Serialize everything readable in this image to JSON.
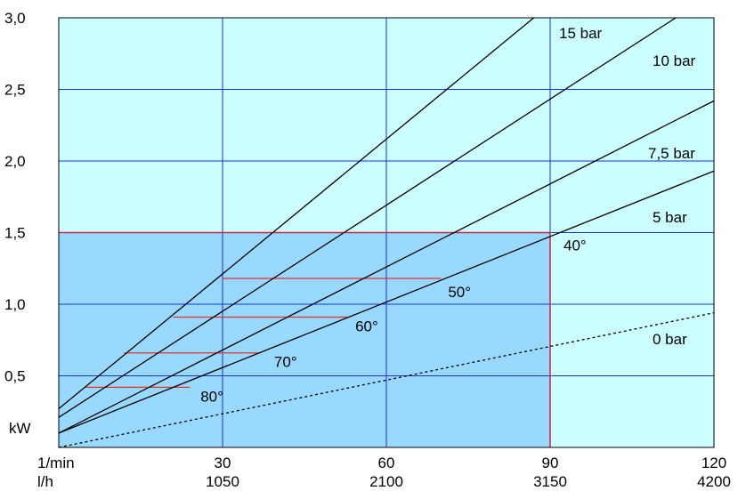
{
  "chart_data": {
    "type": "line",
    "title": "",
    "y_unit_label": "kW",
    "x_unit_labels": [
      "1/min",
      "l/h"
    ],
    "xlim": [
      0,
      120
    ],
    "ylim": [
      0,
      3.0
    ],
    "x_ticks": [
      {
        "rpm": 30,
        "rpm_label": "30",
        "flow_label": "1050"
      },
      {
        "rpm": 60,
        "rpm_label": "60",
        "flow_label": "2100"
      },
      {
        "rpm": 90,
        "rpm_label": "90",
        "flow_label": "3150"
      },
      {
        "rpm": 120,
        "rpm_label": "120",
        "flow_label": "4200"
      }
    ],
    "y_ticks": [
      {
        "value": 0.5,
        "label": "0,5"
      },
      {
        "value": 1.0,
        "label": "1,0"
      },
      {
        "value": 1.5,
        "label": "1,5"
      },
      {
        "value": 2.0,
        "label": "2,0"
      },
      {
        "value": 2.5,
        "label": "2,5"
      },
      {
        "value": 3.0,
        "label": "3,0"
      }
    ],
    "grid": true,
    "colors": {
      "background": "#ccffff",
      "operating_area": "#99d9ff",
      "grid": "#1a33cc",
      "area_border": "#cc2244",
      "temperature_lines": "#dd3333",
      "series": "#000000"
    },
    "series": [
      {
        "name": "15 bar",
        "style": "solid",
        "points": [
          [
            0,
            0.27
          ],
          [
            87,
            3.0
          ]
        ]
      },
      {
        "name": "10 bar",
        "style": "solid",
        "points": [
          [
            0,
            0.21
          ],
          [
            113,
            3.0
          ]
        ]
      },
      {
        "name": "7,5 bar",
        "style": "solid",
        "points": [
          [
            0,
            0.1
          ],
          [
            120,
            2.42
          ]
        ]
      },
      {
        "name": "5 bar",
        "style": "solid",
        "points": [
          [
            0,
            0.1
          ],
          [
            120,
            1.93
          ]
        ]
      },
      {
        "name": "0 bar",
        "style": "dashed",
        "points": [
          [
            0,
            0.0
          ],
          [
            120,
            0.94
          ]
        ]
      }
    ],
    "operating_area": {
      "x_max": 90,
      "y_max": 1.5
    },
    "temperature_lines": [
      {
        "label": "40°",
        "x_start": 90,
        "x_end": 90,
        "y": 1.5
      },
      {
        "label": "50°",
        "x_start": 30,
        "x_end": 70,
        "y": 1.18
      },
      {
        "label": "60°",
        "x_start": 21,
        "x_end": 53,
        "y": 0.91
      },
      {
        "label": "70°",
        "x_start": 12,
        "x_end": 37,
        "y": 0.66
      },
      {
        "label": "80°",
        "x_start": 5,
        "x_end": 24,
        "y": 0.42
      }
    ]
  }
}
